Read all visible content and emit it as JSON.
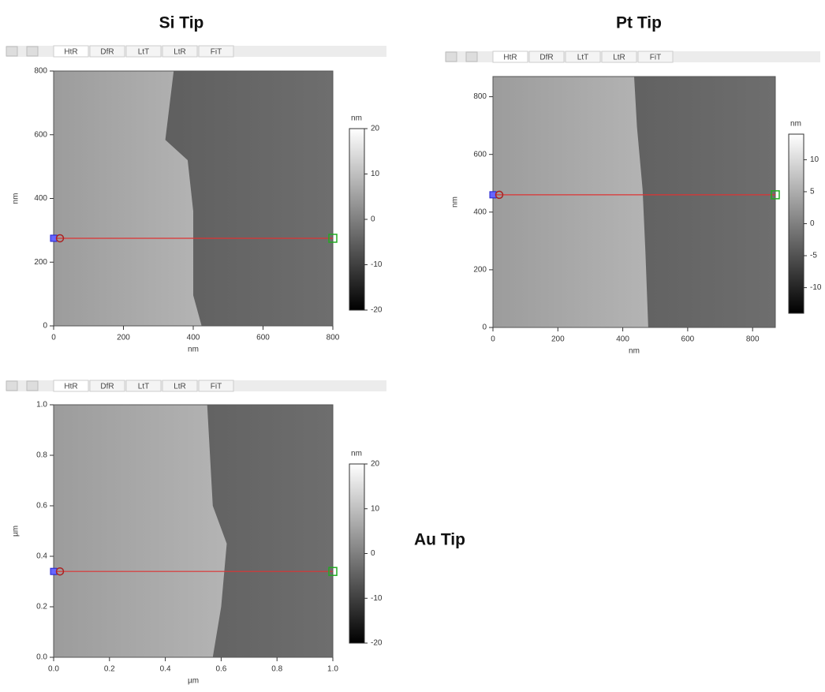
{
  "chart_data": [
    {
      "type": "afm-image",
      "title": "Si Tip",
      "tabs": [
        "HtR",
        "DfR",
        "LtT",
        "LtR",
        "FiT"
      ],
      "xlabel": "nm",
      "ylabel": "nm",
      "xlim": [
        0,
        800
      ],
      "ylim": [
        0,
        800
      ],
      "xticks": [
        0,
        200,
        400,
        600,
        800
      ],
      "yticks": [
        0,
        200,
        400,
        600,
        800
      ],
      "colorbar": {
        "label": "nm",
        "lim": [
          -20,
          20
        ],
        "ticks": [
          20,
          10,
          0,
          -10,
          -20
        ]
      },
      "profile_y": 275
    },
    {
      "type": "afm-image",
      "title": "Pt Tip",
      "tabs": [
        "HtR",
        "DfR",
        "LtT",
        "LtR",
        "FiT"
      ],
      "xlabel": "nm",
      "ylabel": "nm",
      "xlim": [
        0,
        870
      ],
      "ylim": [
        0,
        870
      ],
      "xticks": [
        0,
        200,
        400,
        600,
        800
      ],
      "yticks": [
        0,
        200,
        400,
        600,
        800
      ],
      "colorbar": {
        "label": "nm",
        "lim": [
          -14,
          14
        ],
        "ticks": [
          10,
          5,
          0,
          -5,
          -10
        ]
      },
      "profile_y": 460
    },
    {
      "type": "afm-image",
      "title": "Au Tip",
      "tabs": [
        "HtR",
        "DfR",
        "LtT",
        "LtR",
        "FiT"
      ],
      "xlabel": "µm",
      "ylabel": "µm",
      "xlim": [
        0,
        1
      ],
      "ylim": [
        0,
        1
      ],
      "xticks": [
        {
          "value": 0,
          "label": "0.0"
        },
        0.2,
        0.4,
        0.6,
        0.8,
        {
          "value": 1,
          "label": "1.0"
        }
      ],
      "yticks": [
        {
          "value": 0,
          "label": "0.0"
        },
        0.2,
        0.4,
        0.6,
        0.8,
        {
          "value": 1,
          "label": "1.0"
        }
      ],
      "colorbar": {
        "label": "nm",
        "lim": [
          -20,
          20
        ],
        "ticks": [
          20,
          10,
          0,
          -10,
          -20
        ]
      },
      "profile_y": 0.34
    }
  ]
}
